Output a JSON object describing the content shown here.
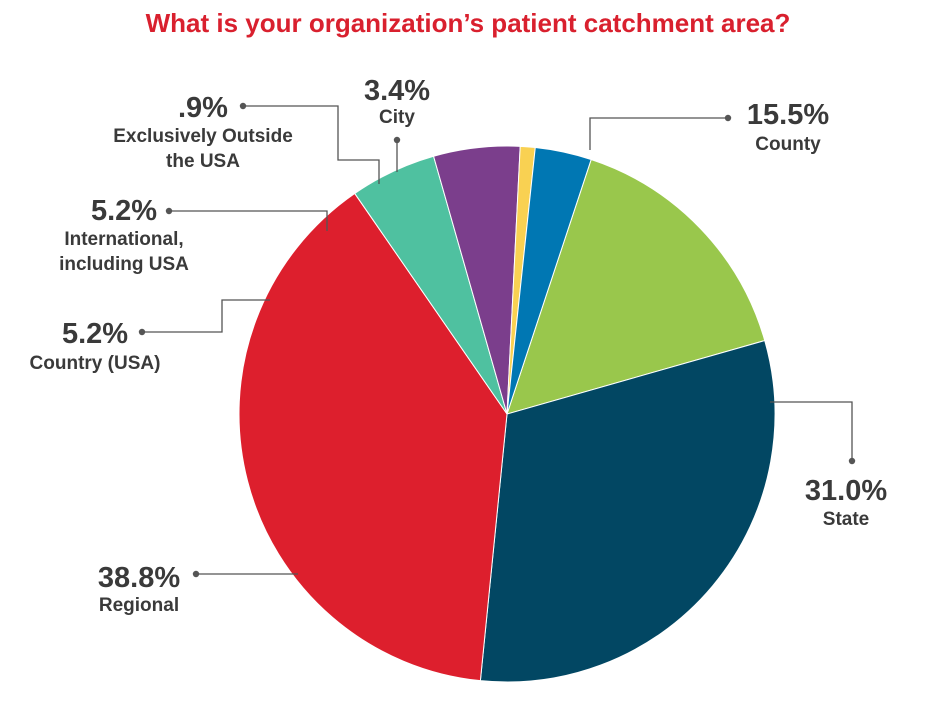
{
  "chart_data": {
    "type": "pie",
    "title": "What is your organization’s patient catchment area?",
    "title_color": "#D9202E",
    "start": "top, clockwise",
    "slices": [
      {
        "label": "County",
        "value_label": "15.5%",
        "value": 15.5,
        "color": "#99C74C"
      },
      {
        "label": "State",
        "value_label": "31.0%",
        "value": 31.0,
        "color": "#024763"
      },
      {
        "label": "Regional",
        "value_label": "38.8%",
        "value": 38.8,
        "color": "#DD1F2D"
      },
      {
        "label": "Country (USA)",
        "value_label": "5.2%",
        "value": 5.2,
        "color": "#4FC1A0"
      },
      {
        "label": "International, including USA",
        "value_label": "5.2%",
        "value": 5.2,
        "color": "#7B3E8C"
      },
      {
        "label": "Exclusively Outside the USA",
        "value_label": ".9%",
        "value": 0.9,
        "color": "#F9D152"
      },
      {
        "label": "City",
        "value_label": "3.4%",
        "value": 3.4,
        "color": "#0077B3"
      }
    ]
  }
}
